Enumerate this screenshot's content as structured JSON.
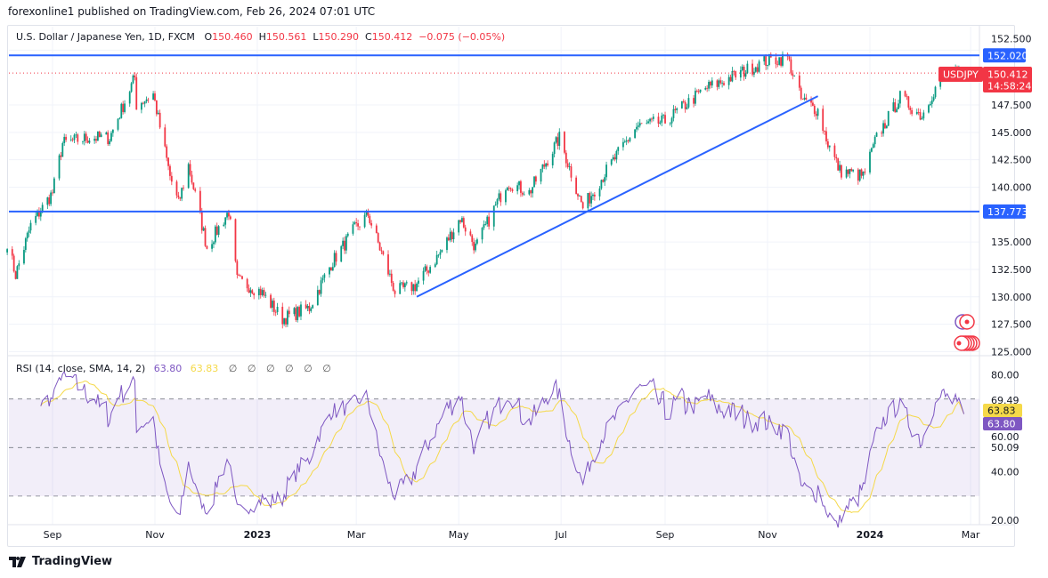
{
  "publisher_line": "forexonline1 published on TradingView.com, Feb 26, 2024 07:01 UTC",
  "legend": {
    "symbol_desc": "U.S. Dollar / Japanese Yen, 1D, FXCM",
    "o_label": "O",
    "o": "150.460",
    "h_label": "H",
    "h": "150.561",
    "l_label": "L",
    "l": "150.290",
    "c_label": "C",
    "c": "150.412",
    "change": "−0.075 (−0.05%)"
  },
  "rsi_legend": {
    "title": "RSI (14, close, SMA, 14, 2)",
    "rsi": "63.80",
    "sma": "63.83",
    "empty_values": [
      "∅",
      "∅",
      "∅",
      "∅",
      "∅",
      "∅"
    ]
  },
  "price_badges": {
    "symbol": "USDJPY",
    "last_price": "150.412",
    "countdown": "14:58:24",
    "level_high": "152.020",
    "level_low": "137.773"
  },
  "rsi_badges": {
    "sma": "63.83",
    "rsi": "63.80"
  },
  "footer": {
    "brand": "TradingView"
  },
  "colors": {
    "up": "#089981",
    "down": "#f23645",
    "line": "#2962ff",
    "rsi": "#7e57c2",
    "rsi_sma": "#f5d949"
  },
  "chart_data": {
    "type": "candlestick",
    "symbol": "USDJPY",
    "timeframe": "1D",
    "price_axis": {
      "ticks": [
        "152.500",
        "147.500",
        "145.000",
        "142.500",
        "140.000",
        "135.000",
        "132.500",
        "130.000",
        "127.500",
        "125.000"
      ],
      "range": [
        125,
        152.5
      ]
    },
    "time_axis": {
      "ticks": [
        {
          "label": "Sep",
          "date": "2022-09-01"
        },
        {
          "label": "Nov",
          "date": "2022-11-01"
        },
        {
          "label": "2023",
          "date": "2023-01-01"
        },
        {
          "label": "Mar",
          "date": "2023-03-01"
        },
        {
          "label": "May",
          "date": "2023-05-01"
        },
        {
          "label": "Jul",
          "date": "2023-07-01"
        },
        {
          "label": "Sep",
          "date": "2023-09-01"
        },
        {
          "label": "Nov",
          "date": "2023-11-01"
        },
        {
          "label": "2024",
          "date": "2024-01-01"
        },
        {
          "label": "Mar",
          "date": "2024-03-01"
        }
      ]
    },
    "close_series": [
      [
        "2022-08-05",
        135.0
      ],
      [
        "2022-08-10",
        132.0
      ],
      [
        "2022-08-19",
        136.5
      ],
      [
        "2022-09-01",
        139.5
      ],
      [
        "2022-09-07",
        144.0
      ],
      [
        "2022-09-22",
        144.5
      ],
      [
        "2022-10-05",
        144.5
      ],
      [
        "2022-10-20",
        150.0
      ],
      [
        "2022-10-21",
        147.5
      ],
      [
        "2022-10-31",
        148.5
      ],
      [
        "2022-11-10",
        141.0
      ],
      [
        "2022-11-15",
        138.5
      ],
      [
        "2022-11-21",
        142.0
      ],
      [
        "2022-12-02",
        134.5
      ],
      [
        "2022-12-15",
        137.8
      ],
      [
        "2022-12-20",
        131.5
      ],
      [
        "2023-01-03",
        130.5
      ],
      [
        "2023-01-16",
        128.0
      ],
      [
        "2023-02-01",
        129.0
      ],
      [
        "2023-02-14",
        133.0
      ],
      [
        "2023-02-28",
        136.2
      ],
      [
        "2023-03-08",
        137.5
      ],
      [
        "2023-03-24",
        130.5
      ],
      [
        "2023-04-05",
        131.0
      ],
      [
        "2023-04-20",
        134.0
      ],
      [
        "2023-05-02",
        137.2
      ],
      [
        "2023-05-11",
        134.5
      ],
      [
        "2023-05-30",
        140.5
      ],
      [
        "2023-06-12",
        139.5
      ],
      [
        "2023-06-30",
        144.5
      ],
      [
        "2023-07-14",
        138.1
      ],
      [
        "2023-07-28",
        141.5
      ],
      [
        "2023-08-15",
        145.5
      ],
      [
        "2023-09-01",
        146.0
      ],
      [
        "2023-09-25",
        149.0
      ],
      [
        "2023-10-03",
        149.5
      ],
      [
        "2023-10-31",
        151.5
      ],
      [
        "2023-11-13",
        151.8
      ],
      [
        "2023-11-21",
        148.0
      ],
      [
        "2023-12-01",
        147.0
      ],
      [
        "2023-12-07",
        144.0
      ],
      [
        "2023-12-14",
        141.5
      ],
      [
        "2023-12-28",
        141.0
      ],
      [
        "2024-01-05",
        144.5
      ],
      [
        "2024-01-19",
        148.2
      ],
      [
        "2024-02-01",
        146.5
      ],
      [
        "2024-02-07",
        148.5
      ],
      [
        "2024-02-14",
        150.2
      ],
      [
        "2024-02-26",
        150.412
      ]
    ],
    "last_candle": {
      "date": "2024-02-26",
      "open": 150.46,
      "high": 150.561,
      "low": 150.29,
      "close": 150.412
    },
    "horizontal_levels": [
      152.02,
      137.773
    ],
    "trendline": {
      "from": {
        "date": "2023-04-06",
        "price": 130.0
      },
      "to": {
        "date": "2023-12-01",
        "price": 148.3
      }
    },
    "indicator": {
      "name": "RSI",
      "length": 14,
      "source": "close",
      "smoothing": "SMA",
      "smoothing_length": 14,
      "last_rsi": 63.8,
      "last_sma": 63.83,
      "axis_ticks": [
        "80.00",
        "69.49",
        "60.00",
        "50.09",
        "40.00",
        "20.00"
      ],
      "bands": [
        70,
        50,
        30
      ]
    }
  }
}
